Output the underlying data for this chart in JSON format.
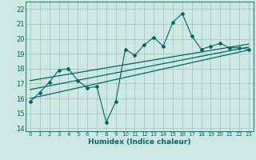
{
  "title": "",
  "xlabel": "Humidex (Indice chaleur)",
  "bg_color": "#cce8e0",
  "grid_color": "#aaccc4",
  "line_color": "#006868",
  "xlim": [
    -0.5,
    23.5
  ],
  "ylim": [
    13.8,
    22.5
  ],
  "yticks": [
    14,
    15,
    16,
    17,
    18,
    19,
    20,
    21,
    22
  ],
  "xticks": [
    0,
    1,
    2,
    3,
    4,
    5,
    6,
    7,
    8,
    9,
    10,
    11,
    12,
    13,
    14,
    15,
    16,
    17,
    18,
    19,
    20,
    21,
    22,
    23
  ],
  "x_main": [
    0,
    1,
    2,
    3,
    4,
    5,
    6,
    7,
    8,
    9,
    10,
    11,
    12,
    13,
    14,
    15,
    16,
    17,
    18,
    19,
    20,
    21,
    22,
    23
  ],
  "y_main": [
    15.8,
    16.4,
    17.1,
    17.9,
    18.0,
    17.2,
    16.7,
    16.8,
    14.4,
    15.8,
    19.3,
    18.9,
    19.6,
    20.1,
    19.5,
    21.1,
    21.7,
    20.2,
    19.3,
    19.5,
    19.7,
    19.4,
    19.4,
    19.3
  ],
  "y_reg1_start": 16.0,
  "y_reg1_end": 19.25,
  "y_reg2_start": 16.6,
  "y_reg2_end": 19.45,
  "y_reg3_start": 17.2,
  "y_reg3_end": 19.65
}
